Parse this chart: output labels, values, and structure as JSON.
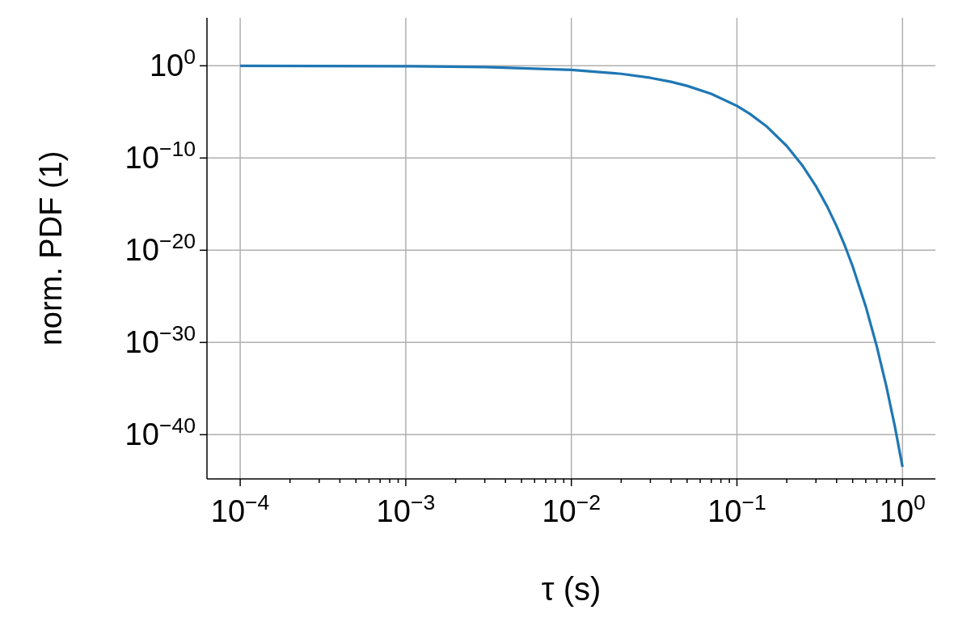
{
  "chart_data": {
    "type": "line",
    "xlabel": "τ (s)",
    "ylabel": "norm. PDF (1)",
    "log": "xy",
    "grid": true,
    "marker": "none",
    "line_style": "solid",
    "x": [
      0.0001,
      0.001,
      0.003,
      0.01,
      0.02,
      0.03,
      0.04,
      0.05,
      0.07,
      0.1,
      0.12,
      0.15,
      0.2,
      0.25,
      0.3,
      0.35,
      0.4,
      0.45,
      0.5,
      0.6,
      0.7,
      0.8,
      0.9,
      1
    ],
    "series": [
      {
        "color": "#1f77b4",
        "values": [
          0.99,
          0.905,
          0.741,
          0.367,
          0.135,
          0.0495,
          0.0182,
          0.00668,
          0.0009,
          4.5e-05,
          6e-06,
          3e-07,
          2e-09,
          1.33e-11,
          8.9e-14,
          5.96e-16,
          4e-18,
          2.66e-20,
          1.78e-22,
          7.9e-27,
          3.5e-31,
          1.58e-35,
          7.1e-40,
          3.2e-44
        ]
      }
    ],
    "xlim": [
      6.3e-05,
      1.58
    ],
    "ylim": [
      1.6e-45,
      160000.0
    ],
    "xticks": [
      {
        "value": 0.0001,
        "label": "10$^{−4}$"
      },
      {
        "value": 0.0002,
        "label": null
      },
      {
        "value": 0.0003,
        "label": null
      },
      {
        "value": 0.0004,
        "label": null
      },
      {
        "value": 0.0005,
        "label": null
      },
      {
        "value": 0.0006,
        "label": null
      },
      {
        "value": 0.0007,
        "label": null
      },
      {
        "value": 0.0008,
        "label": null
      },
      {
        "value": 0.0009,
        "label": null
      },
      {
        "value": 0.001,
        "label": "10$^{−3}$"
      },
      {
        "value": 0.002,
        "label": null
      },
      {
        "value": 0.003,
        "label": null
      },
      {
        "value": 0.004,
        "label": null
      },
      {
        "value": 0.005,
        "label": null
      },
      {
        "value": 0.006,
        "label": null
      },
      {
        "value": 0.007,
        "label": null
      },
      {
        "value": 0.008,
        "label": null
      },
      {
        "value": 0.009,
        "label": null
      },
      {
        "value": 0.01,
        "label": "10$^{−2}$"
      },
      {
        "value": 0.02,
        "label": null
      },
      {
        "value": 0.03,
        "label": null
      },
      {
        "value": 0.04,
        "label": null
      },
      {
        "value": 0.05,
        "label": null
      },
      {
        "value": 0.06,
        "label": null
      },
      {
        "value": 0.07,
        "label": null
      },
      {
        "value": 0.08,
        "label": null
      },
      {
        "value": 0.09,
        "label": null
      },
      {
        "value": 0.1,
        "label": "10$^{−1}$"
      },
      {
        "value": 0.2,
        "label": null
      },
      {
        "value": 0.3,
        "label": null
      },
      {
        "value": 0.4,
        "label": null
      },
      {
        "value": 0.5,
        "label": null
      },
      {
        "value": 0.6,
        "label": null
      },
      {
        "value": 0.7,
        "label": null
      },
      {
        "value": 0.8,
        "label": null
      },
      {
        "value": 0.9,
        "label": null
      },
      {
        "value": 1,
        "label": "10$^{0}$"
      }
    ],
    "yticks": [
      {
        "value": 1e-40,
        "label": "10$^{−40}$"
      },
      {
        "value": 1e-30,
        "label": "10$^{−30}$"
      },
      {
        "value": 1e-20,
        "label": "10$^{−20}$"
      },
      {
        "value": 1e-10,
        "label": "10$^{−10}$"
      },
      {
        "value": 1,
        "label": "10$^{0}$"
      }
    ]
  }
}
